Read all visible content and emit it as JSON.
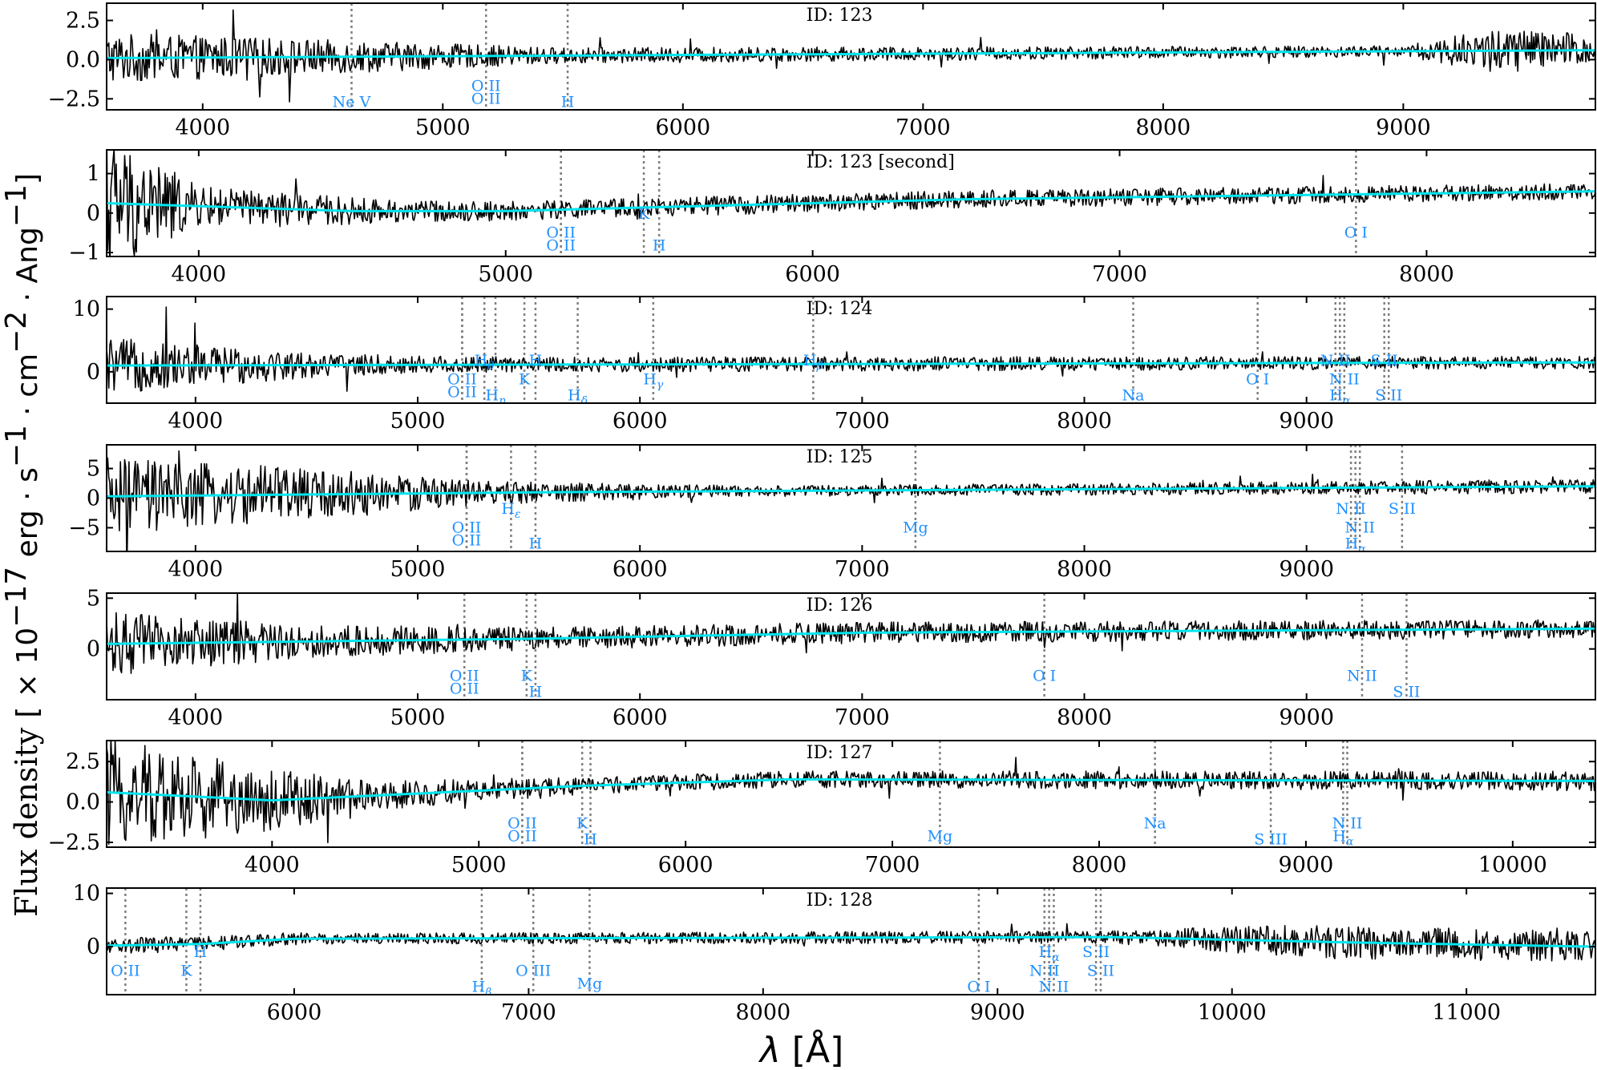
{
  "figure": {
    "ylabel_text": "Flux density",
    "ylabel_unit": "[ × 10",
    "ylabel_unit_exp": "−17",
    "ylabel_unit_rest": " erg · s",
    "ylabel_s_exp": "−1",
    "ylabel_cm": " · cm",
    "ylabel_cm_exp": "−2",
    "ylabel_ang": " · Ang",
    "ylabel_ang_exp": "−1",
    "ylabel_close": "]",
    "xlabel_symbol": "λ",
    "xlabel_unit": " [Å]"
  },
  "colors": {
    "spectrum": "#000000",
    "model": "#00e5ee",
    "line_labels": "#1e90ff",
    "line_markers": "#808080"
  },
  "chart_data": [
    {
      "type": "line",
      "id_label": "ID: 123",
      "xlim": [
        3600,
        9800
      ],
      "ylim": [
        -3.2,
        3.6
      ],
      "xticks": [
        4000,
        5000,
        6000,
        7000,
        8000,
        9000
      ],
      "yticks": [
        -2.5,
        0.0,
        2.5
      ],
      "ytick_labels": [
        "−2.5",
        "0.0",
        "2.5"
      ],
      "continuum": [
        [
          3600,
          0.1
        ],
        [
          6000,
          0.3
        ],
        [
          9800,
          0.6
        ]
      ],
      "noise_scale": [
        [
          3600,
          1.6
        ],
        [
          4500,
          1.1
        ],
        [
          5500,
          0.5
        ],
        [
          9000,
          0.35
        ],
        [
          9400,
          1.5
        ],
        [
          9800,
          1.0
        ]
      ],
      "lines": [
        {
          "label": "Ne V",
          "x": 4620,
          "pos": "low"
        },
        {
          "label": "O II",
          "x": 5180,
          "pos": "mid"
        },
        {
          "label": "O II",
          "x": 5180,
          "pos": "mid2"
        },
        {
          "label": "H",
          "x": 5520,
          "pos": "low"
        }
      ]
    },
    {
      "type": "line",
      "id_label": "ID: 123 [second]",
      "xlim": [
        3700,
        8550
      ],
      "ylim": [
        -1.1,
        1.6
      ],
      "xticks": [
        4000,
        5000,
        6000,
        7000,
        8000
      ],
      "yticks": [
        -1,
        0,
        1
      ],
      "ytick_labels": [
        "−1",
        "0",
        "1"
      ],
      "continuum": [
        [
          3700,
          0.25
        ],
        [
          4500,
          0.05
        ],
        [
          5000,
          0.05
        ],
        [
          6500,
          0.35
        ],
        [
          8550,
          0.55
        ]
      ],
      "noise_scale": [
        [
          3700,
          1.8
        ],
        [
          4000,
          0.5
        ],
        [
          4800,
          0.25
        ],
        [
          8550,
          0.2
        ]
      ],
      "lines": [
        {
          "label": "O II",
          "x": 5180,
          "pos": "mid"
        },
        {
          "label": "O II",
          "x": 5180,
          "pos": "mid2"
        },
        {
          "label": "K",
          "x": 5450,
          "pos": "hi"
        },
        {
          "label": "H",
          "x": 5500,
          "pos": "mid2"
        },
        {
          "label": "O I",
          "x": 7770,
          "pos": "mid"
        }
      ]
    },
    {
      "type": "line",
      "id_label": "ID: 124",
      "xlim": [
        3600,
        10300
      ],
      "ylim": [
        -5,
        12
      ],
      "xticks": [
        4000,
        5000,
        6000,
        7000,
        8000,
        9000
      ],
      "yticks": [
        0,
        10
      ],
      "ytick_labels": [
        "0",
        "10"
      ],
      "continuum": [
        [
          3600,
          1.0
        ],
        [
          10300,
          1.5
        ]
      ],
      "noise_scale": [
        [
          3600,
          4.5
        ],
        [
          4600,
          1.8
        ],
        [
          5500,
          1.2
        ],
        [
          10300,
          1.0
        ]
      ],
      "lines": [
        {
          "label": "O II",
          "x": 5200,
          "pos": "mid"
        },
        {
          "label": "O II",
          "x": 5200,
          "pos": "mid2"
        },
        {
          "label": "H_θ",
          "x": 5300,
          "pos": "hi"
        },
        {
          "label": "H_η",
          "x": 5350,
          "pos": "low"
        },
        {
          "label": "K",
          "x": 5480,
          "pos": "mid"
        },
        {
          "label": "H",
          "x": 5530,
          "pos": "hi"
        },
        {
          "label": "H_δ",
          "x": 5720,
          "pos": "low"
        },
        {
          "label": "H_γ",
          "x": 6060,
          "pos": "mid"
        },
        {
          "label": "H_β",
          "x": 6780,
          "pos": "hi"
        },
        {
          "label": "Na",
          "x": 8220,
          "pos": "low"
        },
        {
          "label": "O I",
          "x": 8780,
          "pos": "mid"
        },
        {
          "label": "N II",
          "x": 9130,
          "pos": "hi"
        },
        {
          "label": "N II",
          "x": 9170,
          "pos": "mid"
        },
        {
          "label": "H_α",
          "x": 9150,
          "pos": "low"
        },
        {
          "label": "S II",
          "x": 9350,
          "pos": "hi"
        },
        {
          "label": "S II",
          "x": 9370,
          "pos": "low"
        }
      ]
    },
    {
      "type": "line",
      "id_label": "ID: 125",
      "xlim": [
        3600,
        10300
      ],
      "ylim": [
        -9,
        9
      ],
      "xticks": [
        4000,
        5000,
        6000,
        7000,
        8000,
        9000
      ],
      "yticks": [
        -5,
        0,
        5
      ],
      "ytick_labels": [
        "−5",
        "0",
        "5"
      ],
      "continuum": [
        [
          3600,
          0.3
        ],
        [
          5600,
          1.0
        ],
        [
          10300,
          2.0
        ]
      ],
      "noise_scale": [
        [
          3600,
          6.5
        ],
        [
          4500,
          4.5
        ],
        [
          5300,
          2.0
        ],
        [
          6500,
          0.9
        ],
        [
          10300,
          1.2
        ]
      ],
      "lines": [
        {
          "label": "O II",
          "x": 5220,
          "pos": "mid"
        },
        {
          "label": "O II",
          "x": 5220,
          "pos": "mid2"
        },
        {
          "label": "H_ε",
          "x": 5420,
          "pos": "hi"
        },
        {
          "label": "H",
          "x": 5530,
          "pos": "low"
        },
        {
          "label": "Mg",
          "x": 7240,
          "pos": "mid"
        },
        {
          "label": "N II",
          "x": 9200,
          "pos": "hi"
        },
        {
          "label": "N II",
          "x": 9240,
          "pos": "mid"
        },
        {
          "label": "H_α",
          "x": 9220,
          "pos": "low"
        },
        {
          "label": "S II",
          "x": 9430,
          "pos": "hi"
        }
      ]
    },
    {
      "type": "line",
      "id_label": "ID: 126",
      "xlim": [
        3600,
        10300
      ],
      "ylim": [
        -5,
        5.5
      ],
      "xticks": [
        4000,
        5000,
        6000,
        7000,
        8000,
        9000
      ],
      "yticks": [
        0,
        5
      ],
      "ytick_labels": [
        "0",
        "5"
      ],
      "continuum": [
        [
          3600,
          0.5
        ],
        [
          5500,
          1.0
        ],
        [
          7000,
          1.6
        ],
        [
          10300,
          2.0
        ]
      ],
      "noise_scale": [
        [
          3600,
          3.2
        ],
        [
          4500,
          1.6
        ],
        [
          5600,
          1.1
        ],
        [
          10300,
          0.9
        ]
      ],
      "lines": [
        {
          "label": "O II",
          "x": 5210,
          "pos": "mid"
        },
        {
          "label": "O II",
          "x": 5210,
          "pos": "mid2"
        },
        {
          "label": "K",
          "x": 5490,
          "pos": "mid"
        },
        {
          "label": "H",
          "x": 5530,
          "pos": "low"
        },
        {
          "label": "O I",
          "x": 7820,
          "pos": "mid"
        },
        {
          "label": "N II",
          "x": 9250,
          "pos": "mid"
        },
        {
          "label": "S II",
          "x": 9450,
          "pos": "low"
        }
      ]
    },
    {
      "type": "line",
      "id_label": "ID: 127",
      "xlim": [
        3200,
        10400
      ],
      "ylim": [
        -2.8,
        3.8
      ],
      "xticks": [
        4000,
        5000,
        6000,
        7000,
        8000,
        9000,
        10000
      ],
      "yticks": [
        -2.5,
        0.0,
        2.5
      ],
      "ytick_labels": [
        "−2.5",
        "0.0",
        "2.5"
      ],
      "continuum": [
        [
          3200,
          0.6
        ],
        [
          4000,
          0.1
        ],
        [
          5500,
          1.0
        ],
        [
          6500,
          1.4
        ],
        [
          10400,
          1.3
        ]
      ],
      "noise_scale": [
        [
          3200,
          3.5
        ],
        [
          3700,
          2.5
        ],
        [
          4500,
          0.9
        ],
        [
          5600,
          0.5
        ],
        [
          10400,
          0.6
        ]
      ],
      "lines": [
        {
          "label": "O II",
          "x": 5210,
          "pos": "mid"
        },
        {
          "label": "O II",
          "x": 5210,
          "pos": "mid2"
        },
        {
          "label": "K",
          "x": 5500,
          "pos": "mid"
        },
        {
          "label": "H",
          "x": 5540,
          "pos": "low"
        },
        {
          "label": "Mg",
          "x": 7230,
          "pos": "mid2"
        },
        {
          "label": "Na",
          "x": 8270,
          "pos": "mid"
        },
        {
          "label": "S III",
          "x": 8830,
          "pos": "low"
        },
        {
          "label": "N II",
          "x": 9200,
          "pos": "mid"
        },
        {
          "label": "H_α",
          "x": 9180,
          "pos": "mid2"
        }
      ]
    },
    {
      "type": "line",
      "id_label": "ID: 128",
      "xlim": [
        5200,
        11550
      ],
      "ylim": [
        -9,
        11
      ],
      "xticks": [
        6000,
        7000,
        8000,
        9000,
        10000,
        11000
      ],
      "yticks": [
        0,
        10
      ],
      "ytick_labels": [
        "0",
        "10"
      ],
      "continuum": [
        [
          5200,
          0.2
        ],
        [
          5600,
          0.5
        ],
        [
          6000,
          1.5
        ],
        [
          9500,
          1.8
        ],
        [
          10500,
          0.8
        ],
        [
          11550,
          0.0
        ]
      ],
      "noise_scale": [
        [
          5200,
          1.6
        ],
        [
          6300,
          1.0
        ],
        [
          9500,
          1.2
        ],
        [
          10300,
          3.2
        ],
        [
          11550,
          2.8
        ]
      ],
      "lines": [
        {
          "label": "O II",
          "x": 5280,
          "pos": "mid"
        },
        {
          "label": "K",
          "x": 5540,
          "pos": "mid"
        },
        {
          "label": "H",
          "x": 5600,
          "pos": "hi"
        },
        {
          "label": "H_β",
          "x": 6800,
          "pos": "low"
        },
        {
          "label": "O III",
          "x": 7020,
          "pos": "mid"
        },
        {
          "label": "Mg",
          "x": 7260,
          "pos": "mid2"
        },
        {
          "label": "O I",
          "x": 8920,
          "pos": "low"
        },
        {
          "label": "H_α",
          "x": 9220,
          "pos": "hi"
        },
        {
          "label": "N II",
          "x": 9200,
          "pos": "mid"
        },
        {
          "label": "N II",
          "x": 9240,
          "pos": "low"
        },
        {
          "label": "S II",
          "x": 9420,
          "pos": "hi"
        },
        {
          "label": "S II",
          "x": 9440,
          "pos": "mid"
        }
      ]
    }
  ]
}
